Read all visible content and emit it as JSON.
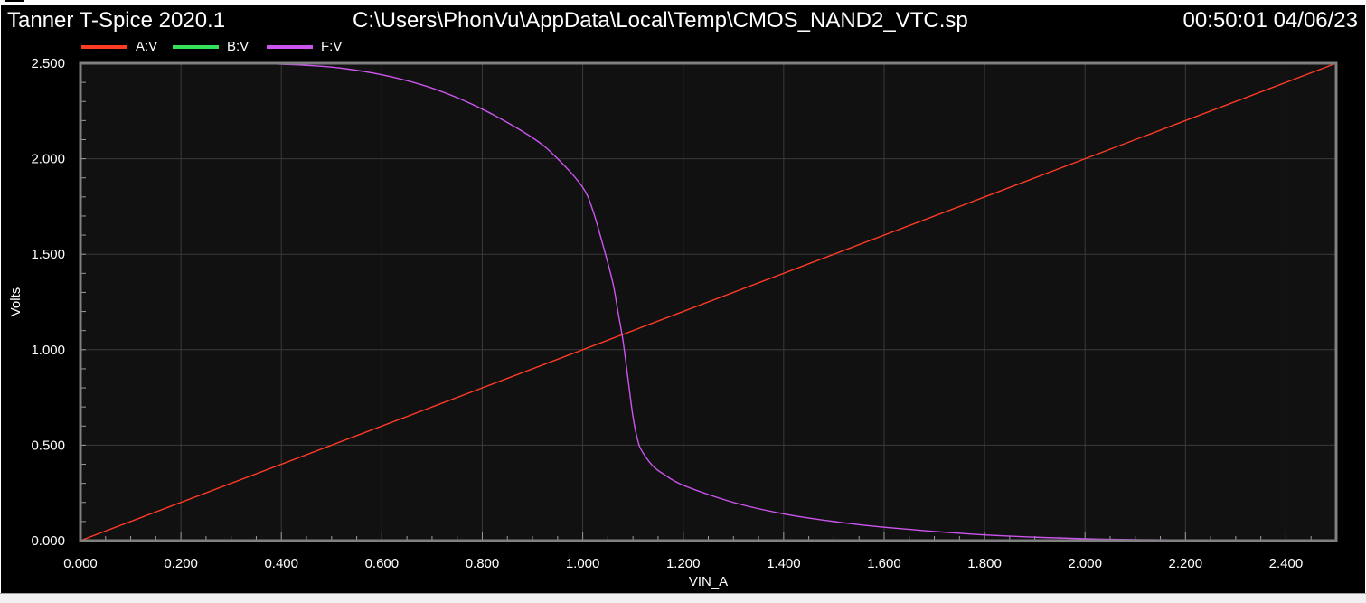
{
  "header": {
    "app_title": "Tanner T-Spice 2020.1",
    "file_path": "C:\\Users\\PhonVu\\AppData\\Local\\Temp\\CMOS_NAND2_VTC.sp",
    "timestamp": "00:50:01 04/06/23"
  },
  "colors": {
    "background": "#000000",
    "plot_area": "#111111",
    "grid": "#3a3a3a",
    "frame": "#808080",
    "text": "#ffffff"
  },
  "chart_data": {
    "type": "line",
    "title": "",
    "xlabel": "VIN_A",
    "ylabel": "Volts",
    "xlim": [
      0,
      2.5
    ],
    "ylim": [
      0,
      2.5
    ],
    "x_ticks": [
      "0.000",
      "0.200",
      "0.400",
      "0.600",
      "0.800",
      "1.000",
      "1.200",
      "1.400",
      "1.600",
      "1.800",
      "2.000",
      "2.200",
      "2.400"
    ],
    "y_ticks": [
      "0.000",
      "0.500",
      "1.000",
      "1.500",
      "2.000",
      "2.500"
    ],
    "grid": true,
    "legend_position": "top-left",
    "series": [
      {
        "name": "A:V",
        "color": "#ff3b24",
        "x": [
          0,
          2.5
        ],
        "y": [
          0,
          2.5
        ]
      },
      {
        "name": "B:V",
        "color": "#33e05a",
        "x": [
          0,
          2.5
        ],
        "y": [
          2.5,
          2.5
        ]
      },
      {
        "name": "F:V",
        "color": "#cc55ee",
        "x": [
          0,
          0.3,
          0.4,
          0.5,
          0.6,
          0.7,
          0.8,
          0.9,
          0.95,
          1.0,
          1.02,
          1.04,
          1.06,
          1.07,
          1.08,
          1.09,
          1.1,
          1.11,
          1.12,
          1.14,
          1.16,
          1.2,
          1.3,
          1.4,
          1.5,
          1.6,
          1.8,
          2.0,
          2.2,
          2.5
        ],
        "y": [
          2.5,
          2.5,
          2.495,
          2.48,
          2.44,
          2.37,
          2.26,
          2.11,
          2.0,
          1.85,
          1.73,
          1.55,
          1.35,
          1.2,
          1.05,
          0.85,
          0.65,
          0.52,
          0.46,
          0.39,
          0.35,
          0.29,
          0.2,
          0.14,
          0.1,
          0.07,
          0.03,
          0.01,
          0.003,
          0.0
        ]
      }
    ]
  }
}
